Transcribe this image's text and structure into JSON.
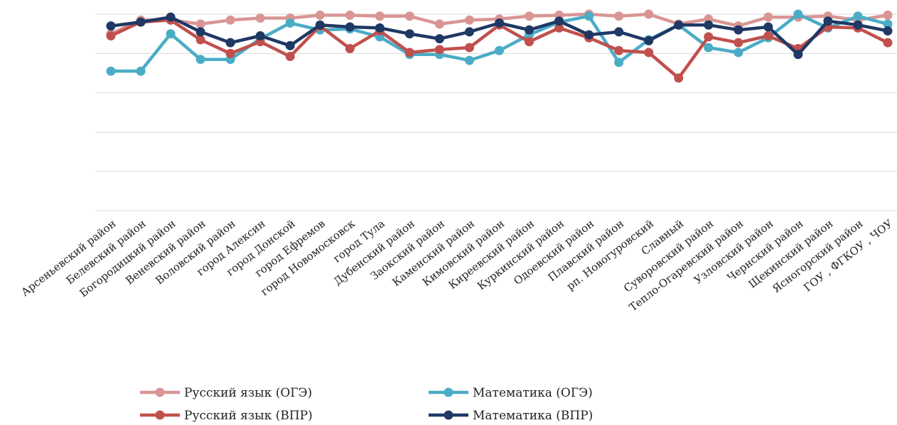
{
  "chart_data": {
    "type": "line",
    "title": "",
    "xlabel": "",
    "ylabel": "",
    "ylim": [
      0,
      100
    ],
    "grid": true,
    "legend_position": "bottom",
    "categories": [
      "Арсеньевский район",
      "Белевский район",
      "Богородицкий район",
      "Веневский район",
      "Воловский район",
      "город Алексин",
      "город Донской",
      "город Ефремов",
      "город Новомосковск",
      "город Тула",
      "Дубенский район",
      "Заокский район",
      "Каменский район",
      "Кимовский район",
      "Киреевский район",
      "Куркинский район",
      "Одоевский район",
      "Плавский район",
      "рп. Новогуровский",
      "Славный",
      "Суворовский район",
      "Тепло-Огаревский район",
      "Узловский район",
      "Чернский район",
      "Щекинский район",
      "Ясногорский район",
      "ГОУ , ФГКОУ , ЧОУ"
    ],
    "series": [
      {
        "name": "Русский язык (ОГЭ)",
        "color": "#D99594",
        "values": [
          90,
          97,
          97,
          95,
          97,
          98,
          98,
          99.5,
          99.5,
          99,
          99,
          95,
          97,
          97.5,
          99,
          99.5,
          100,
          99,
          100,
          95,
          97.5,
          94,
          98.5,
          98.5,
          99,
          97,
          99.5
        ]
      },
      {
        "name": "Математика (ОГЭ)",
        "color": "#4BACC6",
        "values": [
          71,
          71,
          90,
          77,
          77,
          87.5,
          95.5,
          92,
          92.5,
          88.5,
          79.5,
          79.5,
          76.5,
          81.5,
          89.5,
          96,
          99,
          75.5,
          87,
          94.5,
          83,
          80.5,
          88,
          100,
          93,
          99,
          95
        ]
      },
      {
        "name": "Русский язык (ВПР)",
        "color": "#C0504D",
        "values": [
          89,
          96,
          97,
          87,
          80,
          86,
          78.5,
          94,
          82.5,
          91.5,
          80.5,
          82,
          83,
          94.5,
          86,
          93,
          88,
          81.5,
          80.5,
          67.5,
          88.5,
          85.5,
          89,
          82.5,
          93.5,
          93,
          85.5
        ]
      },
      {
        "name": "Математика (ВПР)",
        "color": "#1F3864",
        "values": [
          94,
          96,
          98.5,
          91,
          85.5,
          89,
          84,
          94.5,
          93.5,
          93,
          90,
          87.5,
          91,
          95.5,
          92,
          96.5,
          89.5,
          91,
          86.5,
          94.5,
          94.5,
          92,
          93.5,
          79.5,
          96.5,
          94.5,
          91.5
        ]
      }
    ]
  }
}
